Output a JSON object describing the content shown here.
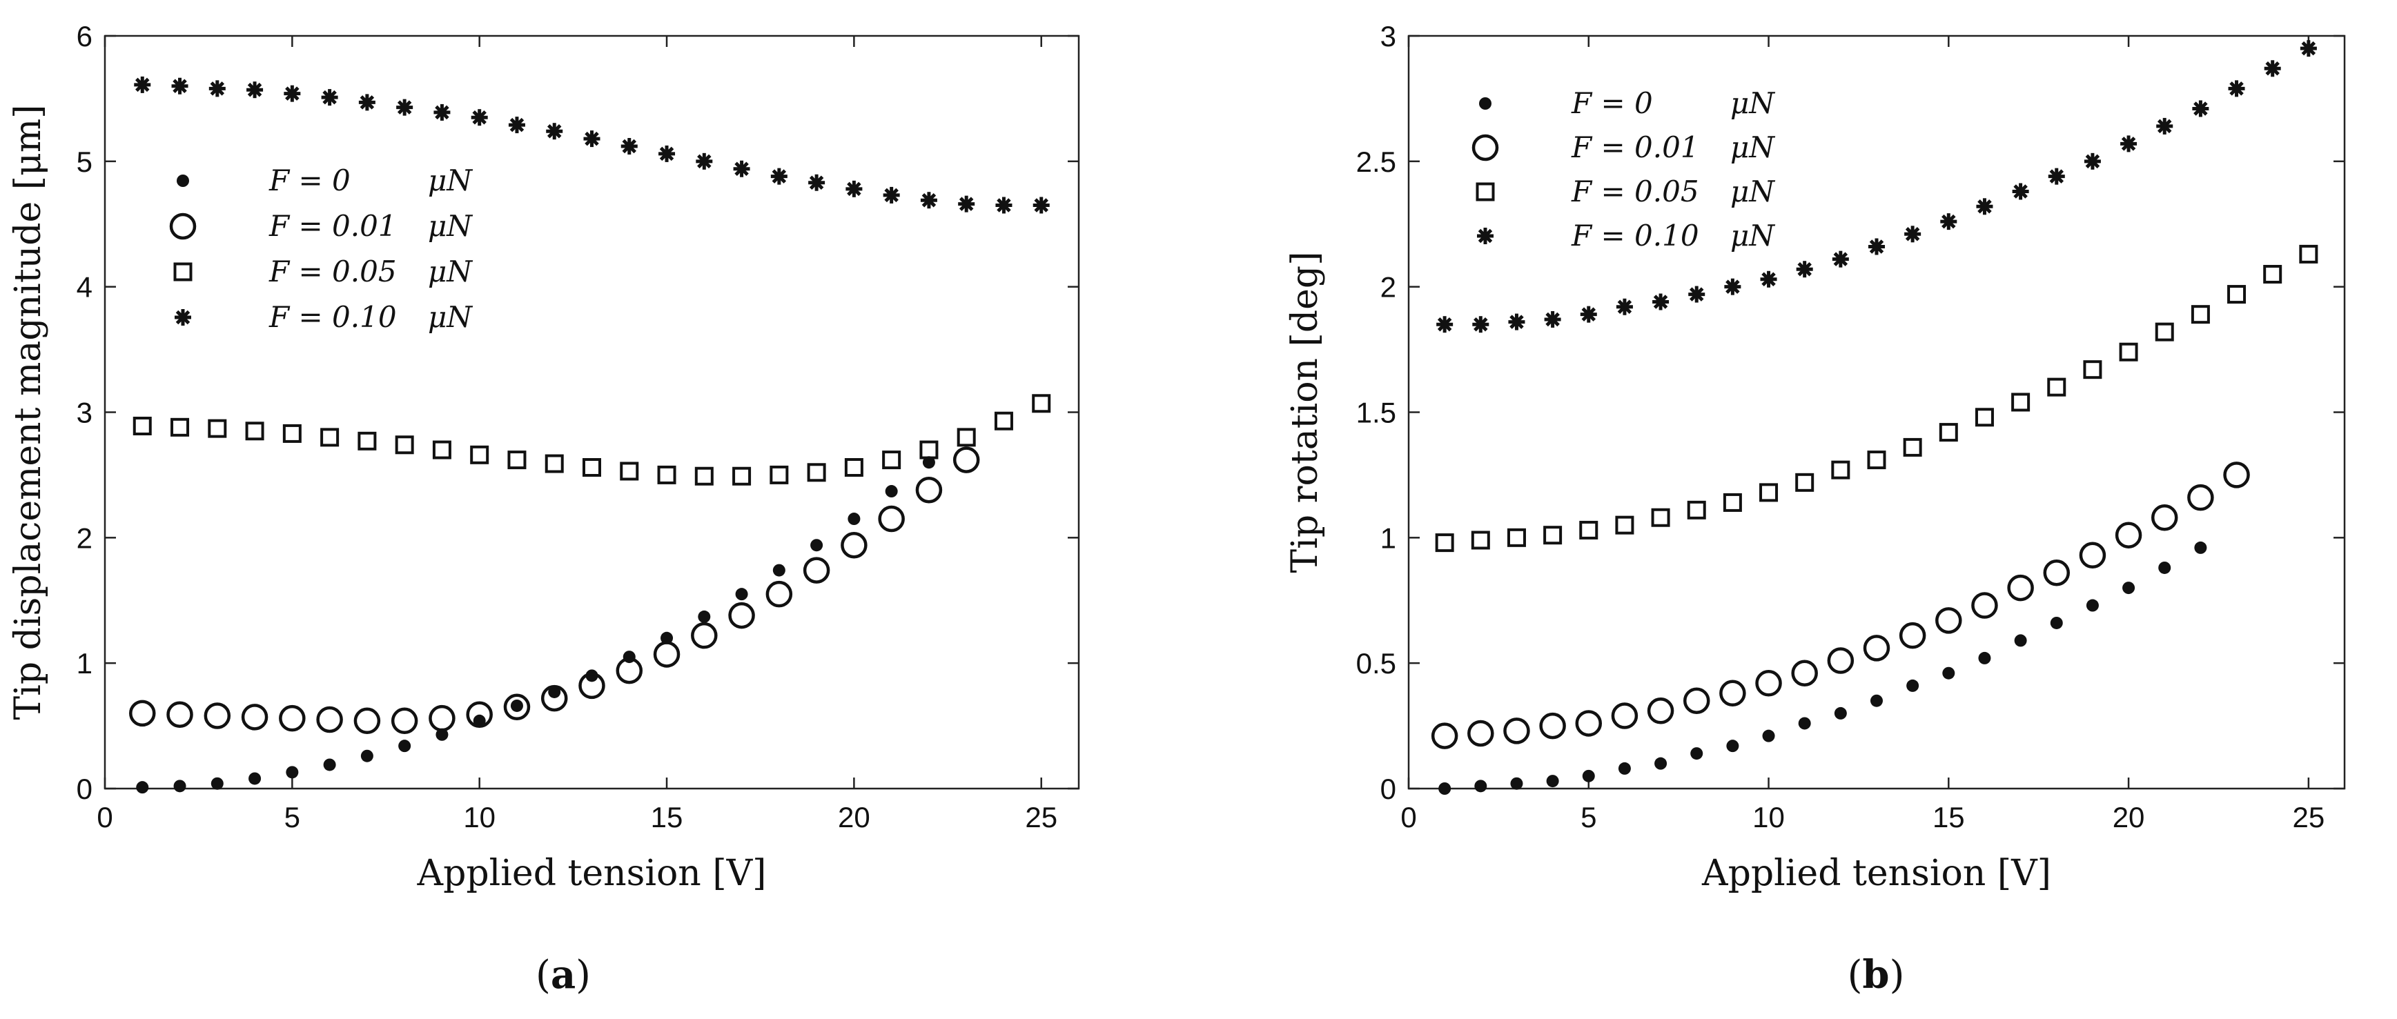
{
  "chart_data": [
    {
      "type": "scatter",
      "caption_letter": "a",
      "xlabel": "Applied tension [V]",
      "ylabel": "Tip displacement magnitude [μm]",
      "xlim": [
        0,
        26
      ],
      "ylim": [
        0,
        6
      ],
      "xticks": [
        0,
        5,
        10,
        15,
        20,
        25
      ],
      "yticks": [
        0,
        1,
        2,
        3,
        4,
        5,
        6
      ],
      "legend_position": "upper-left",
      "series": [
        {
          "name": "F = 0 μN",
          "legend_lhs": "F = 0",
          "legend_unit": "μN",
          "marker": "dot",
          "x": [
            1,
            2,
            3,
            4,
            5,
            6,
            7,
            8,
            9,
            10,
            11,
            12,
            13,
            14,
            15,
            16,
            17,
            18,
            19,
            20,
            21,
            22
          ],
          "values": [
            0.01,
            0.02,
            0.04,
            0.08,
            0.13,
            0.19,
            0.26,
            0.34,
            0.43,
            0.54,
            0.66,
            0.77,
            0.9,
            1.05,
            1.2,
            1.37,
            1.55,
            1.74,
            1.94,
            2.15,
            2.37,
            2.6
          ]
        },
        {
          "name": "F = 0.01 μN",
          "legend_lhs": "F = 0.01",
          "legend_unit": "μN",
          "marker": "circle",
          "x": [
            1,
            2,
            3,
            4,
            5,
            6,
            7,
            8,
            9,
            10,
            11,
            12,
            13,
            14,
            15,
            16,
            17,
            18,
            19,
            20,
            21,
            22,
            23
          ],
          "values": [
            0.6,
            0.59,
            0.58,
            0.57,
            0.56,
            0.55,
            0.54,
            0.54,
            0.56,
            0.59,
            0.65,
            0.72,
            0.82,
            0.94,
            1.07,
            1.22,
            1.38,
            1.55,
            1.74,
            1.94,
            2.15,
            2.38,
            2.62
          ]
        },
        {
          "name": "F = 0.05 μN",
          "legend_lhs": "F = 0.05",
          "legend_unit": "μN",
          "marker": "square",
          "x": [
            1,
            2,
            3,
            4,
            5,
            6,
            7,
            8,
            9,
            10,
            11,
            12,
            13,
            14,
            15,
            16,
            17,
            18,
            19,
            20,
            21,
            22,
            23,
            24,
            25
          ],
          "values": [
            2.89,
            2.88,
            2.87,
            2.85,
            2.83,
            2.8,
            2.77,
            2.74,
            2.7,
            2.66,
            2.62,
            2.59,
            2.56,
            2.53,
            2.5,
            2.49,
            2.49,
            2.5,
            2.52,
            2.56,
            2.62,
            2.7,
            2.8,
            2.93,
            3.07
          ]
        },
        {
          "name": "F = 0.10 μN",
          "legend_lhs": "F = 0.10",
          "legend_unit": "μN",
          "marker": "star",
          "x": [
            1,
            2,
            3,
            4,
            5,
            6,
            7,
            8,
            9,
            10,
            11,
            12,
            13,
            14,
            15,
            16,
            17,
            18,
            19,
            20,
            21,
            22,
            23,
            24,
            25
          ],
          "values": [
            5.61,
            5.6,
            5.58,
            5.57,
            5.54,
            5.51,
            5.47,
            5.43,
            5.39,
            5.35,
            5.29,
            5.24,
            5.18,
            5.12,
            5.06,
            5.0,
            4.94,
            4.88,
            4.83,
            4.78,
            4.73,
            4.69,
            4.66,
            4.65,
            4.65
          ]
        }
      ]
    },
    {
      "type": "scatter",
      "caption_letter": "b",
      "xlabel": "Applied tension [V]",
      "ylabel": "Tip rotation [deg]",
      "xlim": [
        0,
        26
      ],
      "ylim": [
        0,
        3
      ],
      "xticks": [
        0,
        5,
        10,
        15,
        20,
        25
      ],
      "yticks": [
        0,
        0.5,
        1,
        1.5,
        2,
        2.5,
        3
      ],
      "legend_position": "upper-left",
      "series": [
        {
          "name": "F = 0 μN",
          "legend_lhs": "F = 0",
          "legend_unit": "μN",
          "marker": "dot",
          "x": [
            1,
            2,
            3,
            4,
            5,
            6,
            7,
            8,
            9,
            10,
            11,
            12,
            13,
            14,
            15,
            16,
            17,
            18,
            19,
            20,
            21,
            22
          ],
          "values": [
            0.0,
            0.01,
            0.02,
            0.03,
            0.05,
            0.08,
            0.1,
            0.14,
            0.17,
            0.21,
            0.26,
            0.3,
            0.35,
            0.41,
            0.46,
            0.52,
            0.59,
            0.66,
            0.73,
            0.8,
            0.88,
            0.96
          ]
        },
        {
          "name": "F = 0.01 μN",
          "legend_lhs": "F = 0.01",
          "legend_unit": "μN",
          "marker": "circle",
          "x": [
            1,
            2,
            3,
            4,
            5,
            6,
            7,
            8,
            9,
            10,
            11,
            12,
            13,
            14,
            15,
            16,
            17,
            18,
            19,
            20,
            21,
            22,
            23
          ],
          "values": [
            0.21,
            0.22,
            0.23,
            0.25,
            0.26,
            0.29,
            0.31,
            0.35,
            0.38,
            0.42,
            0.46,
            0.51,
            0.56,
            0.61,
            0.67,
            0.73,
            0.8,
            0.86,
            0.93,
            1.01,
            1.08,
            1.16,
            1.25
          ]
        },
        {
          "name": "F = 0.05 μN",
          "legend_lhs": "F = 0.05",
          "legend_unit": "μN",
          "marker": "square",
          "x": [
            1,
            2,
            3,
            4,
            5,
            6,
            7,
            8,
            9,
            10,
            11,
            12,
            13,
            14,
            15,
            16,
            17,
            18,
            19,
            20,
            21,
            22,
            23,
            24,
            25
          ],
          "values": [
            0.98,
            0.99,
            1.0,
            1.01,
            1.03,
            1.05,
            1.08,
            1.11,
            1.14,
            1.18,
            1.22,
            1.27,
            1.31,
            1.36,
            1.42,
            1.48,
            1.54,
            1.6,
            1.67,
            1.74,
            1.82,
            1.89,
            1.97,
            2.05,
            2.13
          ]
        },
        {
          "name": "F = 0.10 μN",
          "legend_lhs": "F = 0.10",
          "legend_unit": "μN",
          "marker": "star",
          "x": [
            1,
            2,
            3,
            4,
            5,
            6,
            7,
            8,
            9,
            10,
            11,
            12,
            13,
            14,
            15,
            16,
            17,
            18,
            19,
            20,
            21,
            22,
            23,
            24,
            25
          ],
          "values": [
            1.85,
            1.85,
            1.86,
            1.87,
            1.89,
            1.92,
            1.94,
            1.97,
            2.0,
            2.03,
            2.07,
            2.11,
            2.16,
            2.21,
            2.26,
            2.32,
            2.38,
            2.44,
            2.5,
            2.57,
            2.64,
            2.71,
            2.79,
            2.87,
            2.95
          ]
        }
      ]
    }
  ]
}
